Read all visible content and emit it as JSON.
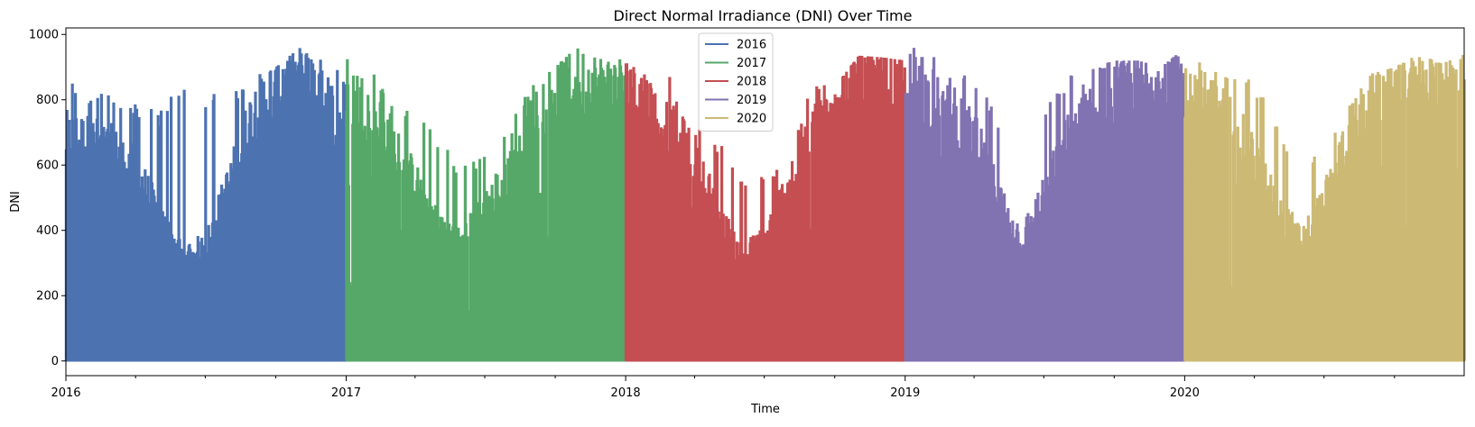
{
  "chart_data": {
    "type": "area",
    "title": "Direct Normal Irradiance (DNI) Over Time",
    "xlabel": "Time",
    "ylabel": "DNI",
    "xlim": [
      "2016-01-01",
      "2020-12-31"
    ],
    "ylim": [
      -45,
      1020
    ],
    "x_tick_labels": [
      "2016",
      "2017",
      "2018",
      "2019",
      "2020"
    ],
    "y_ticks": [
      0,
      200,
      400,
      600,
      800,
      1000
    ],
    "legend_position": "top-center",
    "grid": false,
    "series": [
      {
        "name": "2016",
        "color": "#4c72b0",
        "start": "2016-01-01",
        "end": "2016-12-31",
        "monthly_peak_dni": [
          870,
          840,
          820,
          800,
          760,
          880,
          820,
          850,
          880,
          900,
          960,
          950
        ],
        "monthly_typical_max_dni": [
          700,
          690,
          660,
          600,
          450,
          330,
          360,
          560,
          780,
          860,
          880,
          840
        ]
      },
      {
        "name": "2017",
        "color": "#55a868",
        "start": "2017-01-01",
        "end": "2017-12-31",
        "monthly_peak_dni": [
          925,
          900,
          800,
          760,
          680,
          600,
          640,
          700,
          910,
          900,
          970,
          920
        ],
        "monthly_typical_max_dni": [
          860,
          780,
          680,
          560,
          420,
          380,
          480,
          600,
          780,
          850,
          880,
          860
        ]
      },
      {
        "name": "2018",
        "color": "#c44e52",
        "start": "2018-01-01",
        "end": "2018-12-31",
        "monthly_peak_dni": [
          920,
          880,
          870,
          720,
          680,
          560,
          580,
          600,
          860,
          840,
          935,
          930
        ],
        "monthly_typical_max_dni": [
          850,
          800,
          720,
          640,
          460,
          330,
          380,
          560,
          760,
          820,
          900,
          880
        ]
      },
      {
        "name": "2019",
        "color": "#8172b2",
        "start": "2019-01-01",
        "end": "2019-12-31",
        "monthly_peak_dni": [
          960,
          965,
          900,
          860,
          760,
          640,
          780,
          880,
          900,
          920,
          920,
          900
        ],
        "monthly_typical_max_dni": [
          880,
          820,
          760,
          700,
          520,
          380,
          520,
          700,
          820,
          860,
          880,
          860
        ]
      },
      {
        "name": "2020",
        "color": "#ccb974",
        "start": "2020-01-01",
        "end": "2020-12-31",
        "monthly_peak_dni": [
          940,
          920,
          870,
          860,
          720,
          620,
          640,
          780,
          880,
          900,
          940,
          910
        ],
        "monthly_typical_max_dni": [
          860,
          800,
          740,
          640,
          480,
          380,
          500,
          700,
          820,
          880,
          890,
          880
        ]
      }
    ]
  }
}
